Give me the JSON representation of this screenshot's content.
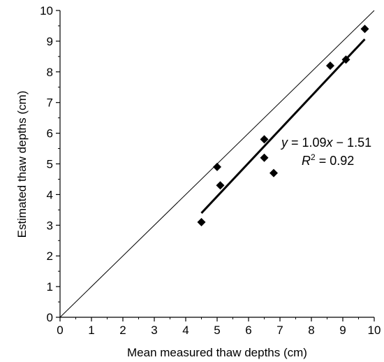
{
  "chart_data": {
    "type": "scatter",
    "title": "",
    "xlabel": "Mean measured thaw depths (cm)",
    "ylabel": "Estimated thaw depths (cm)",
    "xlim": [
      0,
      10
    ],
    "ylim": [
      0,
      10
    ],
    "xticks": [
      "0",
      "1",
      "2",
      "3",
      "4",
      "5",
      "6",
      "7",
      "8",
      "9",
      "10"
    ],
    "yticks": [
      "0",
      "1",
      "2",
      "3",
      "4",
      "5",
      "6",
      "7",
      "8",
      "9",
      "10"
    ],
    "grid": false,
    "points": [
      {
        "x": 4.5,
        "y": 3.1
      },
      {
        "x": 5.0,
        "y": 4.9
      },
      {
        "x": 5.1,
        "y": 4.3
      },
      {
        "x": 6.5,
        "y": 5.8
      },
      {
        "x": 6.5,
        "y": 5.2
      },
      {
        "x": 6.8,
        "y": 4.7
      },
      {
        "x": 8.6,
        "y": 8.2
      },
      {
        "x": 9.1,
        "y": 8.4
      },
      {
        "x": 9.7,
        "y": 9.4
      }
    ],
    "regression": {
      "slope": 1.09,
      "intercept": -1.51,
      "x_range": [
        4.5,
        9.7
      ]
    },
    "reference_line": {
      "from": [
        0,
        0
      ],
      "to": [
        10,
        10
      ]
    },
    "annotation": {
      "equation": {
        "y": "y",
        "eq": " = 1.09",
        "x": "x",
        "rest": " − 1.51"
      },
      "r2": {
        "R": "R",
        "sup": "2",
        "rest": " = 0.92"
      }
    },
    "colors": {
      "marker": "#000000",
      "line": "#000000"
    }
  }
}
